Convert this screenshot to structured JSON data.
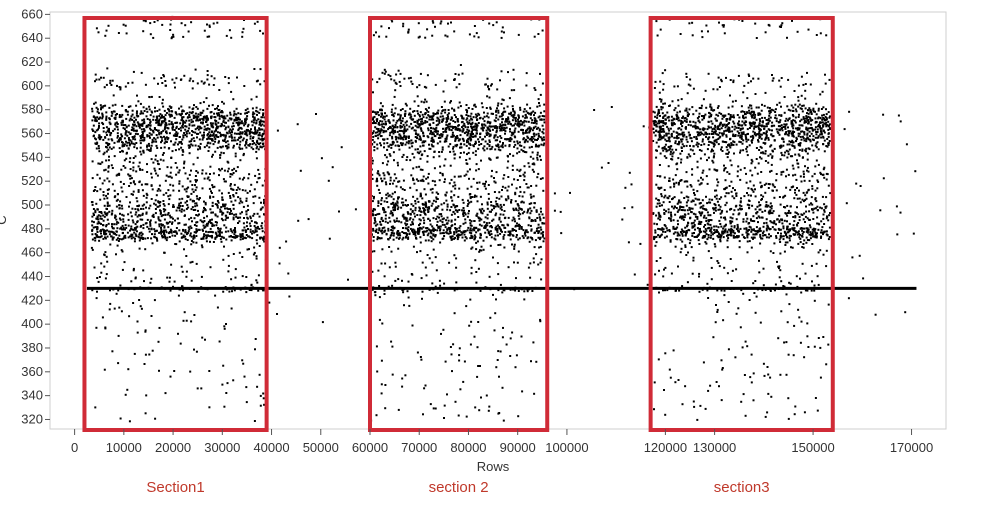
{
  "chart_data": {
    "type": "scatter",
    "xlabel": "Rows",
    "ylabel": "C",
    "xlim": [
      -5000,
      177000
    ],
    "ylim": [
      312,
      662
    ],
    "x_ticks": [
      0,
      10000,
      20000,
      30000,
      40000,
      50000,
      60000,
      70000,
      80000,
      90000,
      100000,
      120000,
      130000,
      150000,
      170000
    ],
    "x_tick_labels": [
      "0",
      "10000",
      "20000",
      "30000",
      "40000",
      "50000",
      "60000",
      "70000",
      "80000",
      "90000",
      "100000",
      "120000",
      "130000",
      "150000",
      "170000"
    ],
    "y_ticks": [
      320,
      340,
      360,
      380,
      400,
      420,
      440,
      460,
      480,
      500,
      520,
      540,
      560,
      580,
      600,
      620,
      640,
      660
    ],
    "y_tick_labels": [
      "320",
      "340",
      "360",
      "380",
      "400",
      "420",
      "440",
      "460",
      "480",
      "500",
      "520",
      "540",
      "560",
      "580",
      "600",
      "620",
      "640",
      "660"
    ],
    "grid": false,
    "reference_line": {
      "y": 430,
      "x_range": [
        2500,
        171000
      ]
    },
    "sections": [
      {
        "label": "Section1",
        "x_range": [
          2000,
          39000
        ],
        "y_range": [
          312,
          662
        ]
      },
      {
        "label": "section 2",
        "x_range": [
          60000,
          96000
        ],
        "y_range": [
          312,
          662
        ]
      },
      {
        "label": "section3",
        "x_range": [
          117000,
          154000
        ],
        "y_range": [
          312,
          662
        ]
      }
    ],
    "point_color": "#000000",
    "box_color": "#d02b37",
    "label_color": "#c0392b"
  }
}
